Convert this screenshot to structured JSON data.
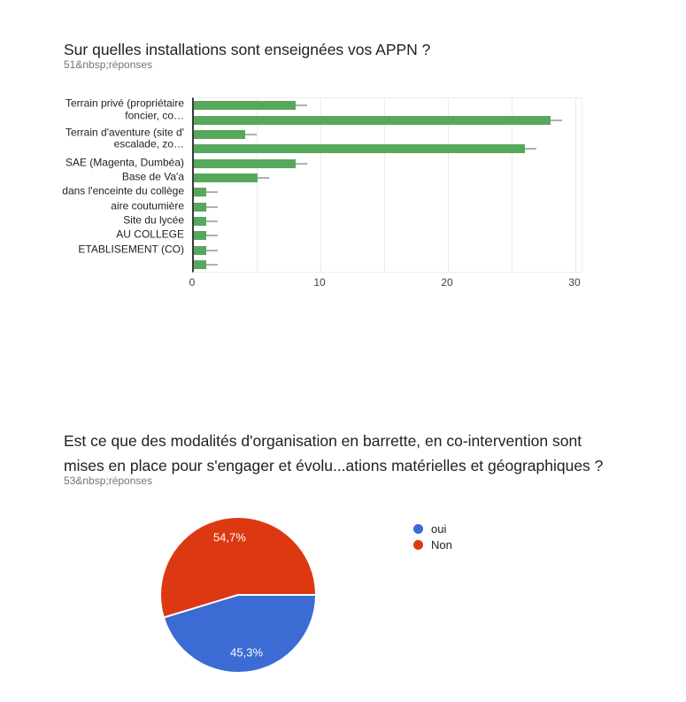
{
  "colors": {
    "bar_green": "#56a85c",
    "whisker_gray": "#b0b0b0",
    "pie_blue": "#3b6bd3",
    "pie_red": "#dc3912",
    "title_text": "#212121",
    "subtitle_text": "#757575",
    "gridline": "#ececec",
    "axis_line": "#3a3a3a"
  },
  "chart_data": [
    {
      "type": "bar",
      "orientation": "horizontal",
      "title": "Sur quelles installations sont enseignées vos APPN ?",
      "subtitle": "51&nbsp;réponses",
      "categories": [
        "Terrain privé (propriétaire foncier, co…",
        "",
        "Terrain d'aventure (site d'escalade, zo…",
        "",
        "SAE (Magenta, Dumbéa)",
        "Base de Va'a",
        "dans l'enceinte du collège",
        "aire coutumière",
        "Site du lycée",
        "AU COLLEGE",
        "ETABLISEMENT (CO)",
        ""
      ],
      "category_display_lines": [
        [
          "Terrain privé (propriétaire",
          "foncier, co…"
        ],
        [],
        [
          "Terrain d'aventure (site d'",
          "escalade, zo…"
        ],
        [],
        [
          "SAE (Magenta, Dumbéa)"
        ],
        [
          "Base de Va'a"
        ],
        [
          "dans l'enceinte du collège"
        ],
        [
          "aire coutumière"
        ],
        [
          "Site du lycée"
        ],
        [
          "AU COLLEGE"
        ],
        [
          "ETABLISEMENT (CO)"
        ],
        []
      ],
      "values": [
        8,
        28,
        4,
        26,
        8,
        5,
        1,
        1,
        1,
        1,
        1,
        1
      ],
      "whisker_extent": 0.9,
      "xlim": [
        0,
        30
      ],
      "x_ticks": [
        "0",
        "10",
        "20",
        "30"
      ],
      "gridline_step": 5,
      "grid": true,
      "bar_color": "#56a85c",
      "whisker_color": "#b0b0b0"
    },
    {
      "type": "pie",
      "title": "Est ce que des modalités d'organisation en barrette, en co-intervention sont mises en place pour s'engager et évolu...ations matérielles et géographiques ?",
      "title_lines": [
        "Est ce que des modalités d'organisation en barrette, en co-intervention sont",
        "mises en place pour s'engager et évolu...ations matérielles et géographiques ?"
      ],
      "subtitle": "53&nbsp;réponses",
      "slices": [
        {
          "label": "oui",
          "value_pct": 45.3,
          "pct_label": "45,3%",
          "color": "#3b6bd3"
        },
        {
          "label": "Non",
          "value_pct": 54.7,
          "pct_label": "54,7%",
          "color": "#dc3912"
        }
      ],
      "start_angle": "3-o-clock, clockwise",
      "legend_position": "right",
      "legend_marker": "circle-icon"
    }
  ]
}
